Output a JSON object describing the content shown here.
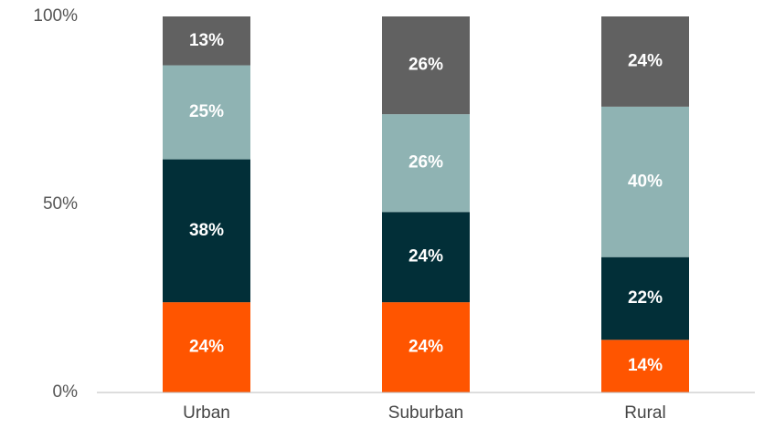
{
  "chart_data": {
    "type": "stacked_bar",
    "categories": [
      "Urban",
      "Suburban",
      "Rural"
    ],
    "series": [
      {
        "color": "#ff5500",
        "values": [
          24,
          24,
          14
        ],
        "value_labels": [
          "24%",
          "24%",
          "14%"
        ]
      },
      {
        "color": "#022f38",
        "values": [
          38,
          24,
          22
        ],
        "value_labels": [
          "38%",
          "24%",
          "22%"
        ]
      },
      {
        "color": "#8fb3b3",
        "values": [
          25,
          26,
          40
        ],
        "value_labels": [
          "25%",
          "26%",
          "40%"
        ]
      },
      {
        "color": "#616161",
        "values": [
          13,
          26,
          24
        ],
        "value_labels": [
          "13%",
          "26%",
          "24%"
        ]
      }
    ],
    "ylim": [
      0,
      100
    ],
    "yticks": [
      {
        "value": 0,
        "label": "0%"
      },
      {
        "value": 50,
        "label": "50%"
      },
      {
        "value": 100,
        "label": "100%"
      }
    ],
    "grid": false
  }
}
